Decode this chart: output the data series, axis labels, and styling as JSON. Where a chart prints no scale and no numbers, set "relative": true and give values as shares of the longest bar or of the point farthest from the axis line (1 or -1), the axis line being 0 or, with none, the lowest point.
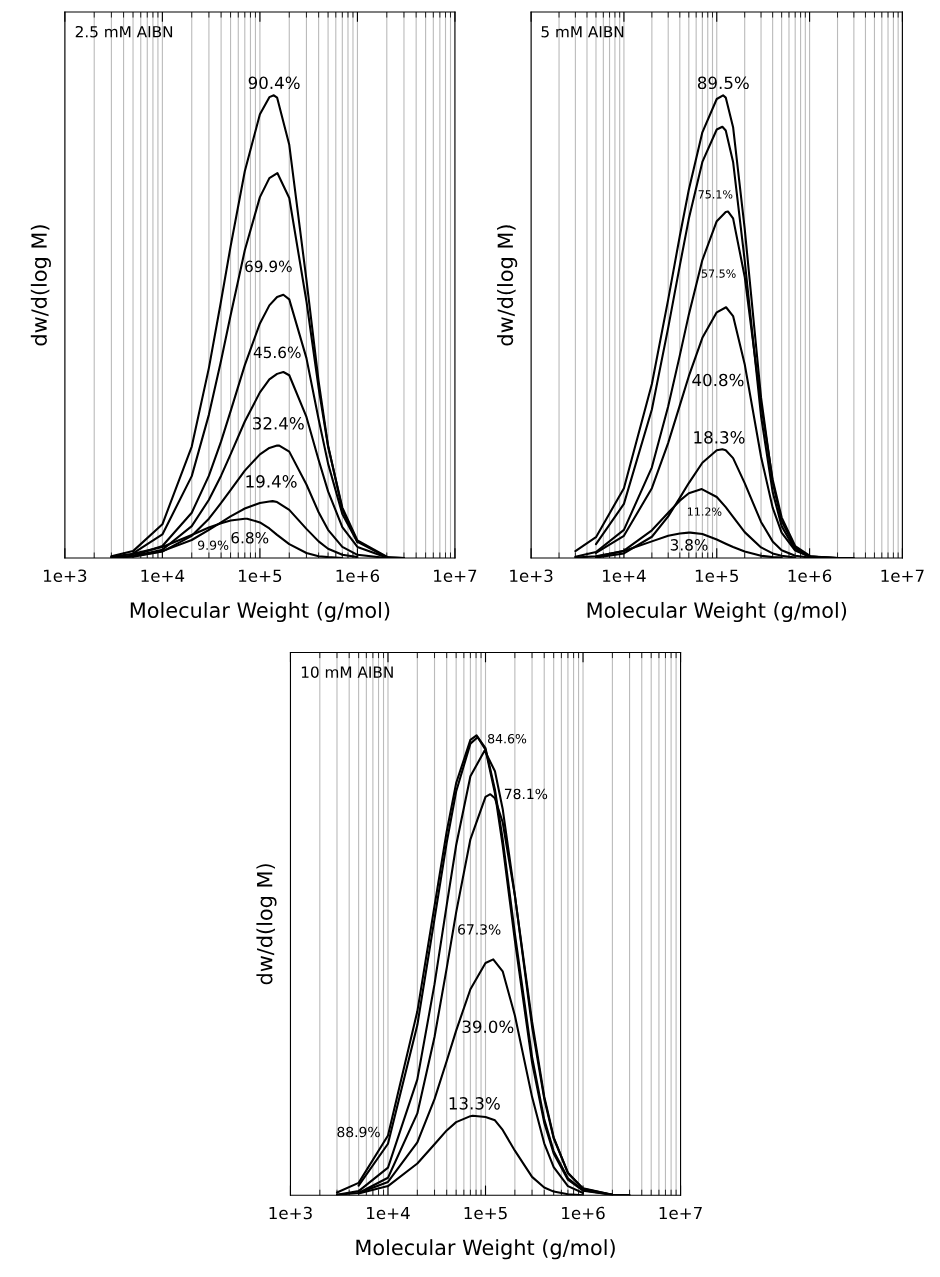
{
  "chart_data": [
    {
      "type": "line",
      "title": "2.5 mM AIBN",
      "xlabel": "Molecular Weight (g/mol)",
      "ylabel": "dw/d(log M)",
      "log": "x",
      "grid": "x",
      "relative": true,
      "line_style": "solid",
      "xlim": [
        1000,
        10000000
      ],
      "xticks": [
        {
          "value": 1000,
          "label": "1e+3"
        },
        {
          "value": 10000,
          "label": "1e+4"
        },
        {
          "value": 100000,
          "label": "1e+5"
        },
        {
          "value": 1000000,
          "label": "1e+6"
        },
        {
          "value": 10000000,
          "label": "1e+7"
        }
      ],
      "series": [
        {
          "name": "90.4%",
          "color": "#000000",
          "x": [
            3000,
            5000,
            10000,
            20000,
            30000,
            40000,
            50000,
            70000,
            100000,
            125000,
            139000,
            150000,
            200000,
            300000,
            400000,
            500000,
            700000,
            1000000,
            2000000,
            3000000
          ],
          "values": [
            0.004,
            0.015,
            0.073,
            0.241,
            0.411,
            0.556,
            0.673,
            0.836,
            0.959,
            0.996,
            1,
            0.995,
            0.893,
            0.601,
            0.382,
            0.243,
            0.105,
            0.035,
            0.002,
            0
          ]
        },
        {
          "name": "69.9%",
          "color": "#000000",
          "x": [
            5000,
            10000,
            20000,
            30000,
            40000,
            50000,
            70000,
            100000,
            125000,
            151000,
            200000,
            300000,
            400000,
            500000,
            700000,
            1000000,
            2000000
          ],
          "values": [
            0.01,
            0.051,
            0.177,
            0.31,
            0.427,
            0.524,
            0.665,
            0.78,
            0.821,
            0.832,
            0.778,
            0.555,
            0.367,
            0.241,
            0.109,
            0.038,
            0.003
          ]
        },
        {
          "name": "45.6%",
          "color": "#000000",
          "x": [
            3000,
            5000,
            10000,
            20000,
            30000,
            40000,
            50000,
            70000,
            100000,
            125000,
            150000,
            174000,
            200000,
            300000,
            400000,
            500000,
            700000,
            1000000
          ],
          "values": [
            0.001,
            0.005,
            0.026,
            0.098,
            0.178,
            0.252,
            0.317,
            0.417,
            0.507,
            0.546,
            0.564,
            0.569,
            0.559,
            0.432,
            0.3,
            0.204,
            0.095,
            0.034
          ]
        },
        {
          "name": "32.4%",
          "color": "#000000",
          "x": [
            5000,
            10000,
            20000,
            30000,
            40000,
            50000,
            70000,
            100000,
            125000,
            150000,
            174000,
            200000,
            300000,
            400000,
            500000,
            700000,
            1000000,
            2000000,
            3000000
          ],
          "values": [
            0.004,
            0.018,
            0.069,
            0.126,
            0.178,
            0.224,
            0.295,
            0.358,
            0.386,
            0.398,
            0.402,
            0.395,
            0.305,
            0.212,
            0.144,
            0.067,
            0.024,
            0.001,
            0
          ]
        },
        {
          "name": "19.4%",
          "color": "#000000",
          "x": [
            3000,
            5000,
            10000,
            20000,
            30000,
            40000,
            50000,
            70000,
            100000,
            125000,
            150000,
            158000,
            200000,
            300000,
            400000,
            500000,
            700000,
            1000000,
            2000000
          ],
          "values": [
            0.001,
            0.003,
            0.014,
            0.048,
            0.085,
            0.119,
            0.147,
            0.189,
            0.224,
            0.238,
            0.243,
            0.243,
            0.23,
            0.159,
            0.099,
            0.061,
            0.024,
            0.007,
            0
          ]
        },
        {
          "name": "9.9%",
          "color": "#000000",
          "x": [
            5000,
            10000,
            20000,
            30000,
            40000,
            50000,
            70000,
            100000,
            125000,
            135000,
            150000,
            200000,
            300000,
            400000,
            500000,
            700000,
            1000000
          ],
          "values": [
            0.004,
            0.015,
            0.039,
            0.061,
            0.077,
            0.09,
            0.107,
            0.119,
            0.122,
            0.123,
            0.121,
            0.104,
            0.063,
            0.036,
            0.02,
            0.007,
            0.002
          ]
        },
        {
          "name": "6.8%",
          "color": "#000000",
          "x": [
            3000,
            5000,
            10000,
            20000,
            30000,
            40000,
            50000,
            70000,
            74000,
            100000,
            125000,
            150000,
            200000,
            300000,
            400000,
            500000,
            700000
          ],
          "values": [
            0.003,
            0.009,
            0.024,
            0.05,
            0.066,
            0.075,
            0.081,
            0.085,
            0.085,
            0.077,
            0.064,
            0.05,
            0.03,
            0.011,
            0.004,
            0.002,
            0
          ]
        }
      ]
    },
    {
      "type": "line",
      "title": "5 mM AIBN",
      "xlabel": "Molecular Weight (g/mol)",
      "ylabel": "dw/d(log M)",
      "log": "x",
      "grid": "x",
      "relative": true,
      "line_style": "solid",
      "xlim": [
        1000,
        10000000
      ],
      "xticks": [
        {
          "value": 1000,
          "label": "1e+3"
        },
        {
          "value": 10000,
          "label": "1e+4"
        },
        {
          "value": 100000,
          "label": "1e+5"
        },
        {
          "value": 1000000,
          "label": "1e+6"
        },
        {
          "value": 10000000,
          "label": "1e+7"
        }
      ],
      "series": [
        {
          "name": "89.5%",
          "color": "#000000",
          "x": [
            3000,
            5000,
            10000,
            20000,
            30000,
            40000,
            50000,
            70000,
            100000,
            117000,
            125000,
            150000,
            200000,
            300000,
            400000,
            500000,
            700000,
            1000000,
            2000000
          ],
          "values": [
            0.015,
            0.045,
            0.151,
            0.376,
            0.559,
            0.696,
            0.796,
            0.92,
            0.992,
            1,
            0.995,
            0.931,
            0.712,
            0.347,
            0.164,
            0.08,
            0.022,
            0.004,
            0
          ]
        },
        {
          "name": "75.1%",
          "color": "#000000",
          "x": [
            5000,
            10000,
            20000,
            30000,
            40000,
            50000,
            70000,
            100000,
            115000,
            125000,
            150000,
            200000,
            300000,
            400000,
            500000,
            700000,
            1000000,
            2000000,
            3000000
          ],
          "values": [
            0.03,
            0.117,
            0.321,
            0.498,
            0.632,
            0.733,
            0.856,
            0.926,
            0.932,
            0.924,
            0.856,
            0.643,
            0.307,
            0.143,
            0.069,
            0.018,
            0.003,
            0,
            0
          ]
        },
        {
          "name": "57.5%",
          "color": "#000000",
          "x": [
            3000,
            5000,
            10000,
            20000,
            30000,
            40000,
            50000,
            70000,
            100000,
            125000,
            132000,
            150000,
            200000,
            300000,
            400000,
            500000,
            700000,
            1000000
          ],
          "values": [
            0.003,
            0.013,
            0.061,
            0.196,
            0.328,
            0.438,
            0.526,
            0.644,
            0.728,
            0.748,
            0.749,
            0.734,
            0.608,
            0.332,
            0.17,
            0.088,
            0.026,
            0.005
          ]
        },
        {
          "name": "40.8%",
          "color": "#000000",
          "x": [
            5000,
            10000,
            20000,
            30000,
            40000,
            50000,
            70000,
            100000,
            126000,
            150000,
            200000,
            300000,
            400000,
            500000,
            700000,
            1000000,
            2000000
          ],
          "values": [
            0.011,
            0.048,
            0.151,
            0.249,
            0.33,
            0.393,
            0.476,
            0.531,
            0.542,
            0.523,
            0.419,
            0.219,
            0.109,
            0.055,
            0.016,
            0.003,
            0
          ]
        },
        {
          "name": "18.3%",
          "color": "#000000",
          "x": [
            5000,
            10000,
            20000,
            30000,
            40000,
            50000,
            70000,
            100000,
            115000,
            125000,
            150000,
            200000,
            300000,
            400000,
            500000,
            700000,
            1000000
          ],
          "values": [
            0.001,
            0.01,
            0.046,
            0.09,
            0.13,
            0.162,
            0.206,
            0.233,
            0.235,
            0.233,
            0.216,
            0.162,
            0.078,
            0.036,
            0.017,
            0.005,
            0.001
          ]
        },
        {
          "name": "11.2%",
          "color": "#000000",
          "x": [
            5000,
            10000,
            20000,
            30000,
            40000,
            50000,
            69000,
            100000,
            125000,
            150000,
            200000,
            300000,
            400000,
            500000,
            700000
          ],
          "values": [
            0.003,
            0.016,
            0.06,
            0.098,
            0.124,
            0.14,
            0.149,
            0.132,
            0.11,
            0.089,
            0.056,
            0.023,
            0.01,
            0.005,
            0.001
          ]
        },
        {
          "name": "3.8%",
          "color": "#000000",
          "x": [
            3000,
            5000,
            10000,
            20000,
            30000,
            40000,
            50000,
            52000,
            70000,
            100000,
            125000,
            150000,
            200000,
            300000,
            400000,
            500000
          ],
          "values": [
            0.001,
            0.004,
            0.015,
            0.036,
            0.048,
            0.053,
            0.055,
            0.055,
            0.052,
            0.04,
            0.031,
            0.024,
            0.014,
            0.005,
            0.002,
            0.001
          ]
        }
      ]
    },
    {
      "type": "line",
      "title": "10 mM AIBN",
      "xlabel": "Molecular Weight (g/mol)",
      "ylabel": "dw/d(log M)",
      "log": "x",
      "grid": "x",
      "relative": true,
      "line_style": "solid",
      "xlim": [
        1000,
        10000000
      ],
      "xticks": [
        {
          "value": 1000,
          "label": "1e+3"
        },
        {
          "value": 10000,
          "label": "1e+4"
        },
        {
          "value": 100000,
          "label": "1e+5"
        },
        {
          "value": 1000000,
          "label": "1e+6"
        },
        {
          "value": 10000000,
          "label": "1e+7"
        }
      ],
      "series": [
        {
          "name": "88.9%",
          "color": "#000000",
          "x": [
            3000,
            5000,
            10000,
            20000,
            30000,
            40000,
            50000,
            70000,
            81000,
            100000,
            125000,
            150000,
            200000,
            300000,
            400000,
            500000,
            700000,
            1000000,
            2000000,
            3000000
          ],
          "values": [
            0.006,
            0.027,
            0.13,
            0.4,
            0.629,
            0.791,
            0.896,
            0.99,
            1,
            0.969,
            0.874,
            0.761,
            0.554,
            0.289,
            0.158,
            0.091,
            0.034,
            0.01,
            0.001,
            0
          ]
        },
        {
          "name": "84.6%",
          "color": "#000000",
          "x": [
            5000,
            10000,
            20000,
            30000,
            40000,
            50000,
            70000,
            83000,
            100000,
            125000,
            150000,
            200000,
            300000,
            400000,
            500000,
            700000,
            1000000,
            2000000
          ],
          "values": [
            0.021,
            0.112,
            0.37,
            0.601,
            0.767,
            0.878,
            0.982,
            0.996,
            0.972,
            0.882,
            0.774,
            0.569,
            0.301,
            0.165,
            0.096,
            0.037,
            0.011,
            0.001
          ]
        },
        {
          "name": "78.1%",
          "color": "#000000",
          "x": [
            3000,
            5000,
            10000,
            20000,
            30000,
            40000,
            50000,
            70000,
            98000,
            125000,
            150000,
            200000,
            300000,
            400000,
            500000,
            700000,
            1000000,
            2000000
          ],
          "values": [
            0.001,
            0.009,
            0.06,
            0.252,
            0.459,
            0.631,
            0.761,
            0.911,
            0.967,
            0.922,
            0.84,
            0.652,
            0.367,
            0.21,
            0.124,
            0.049,
            0.015,
            0.001
          ]
        },
        {
          "name": "67.3%",
          "color": "#000000",
          "x": [
            5000,
            10000,
            20000,
            30000,
            40000,
            50000,
            70000,
            100000,
            112000,
            125000,
            150000,
            200000,
            300000,
            400000,
            500000,
            700000,
            1000000,
            2000000,
            3000000
          ],
          "values": [
            0.005,
            0.038,
            0.178,
            0.344,
            0.494,
            0.615,
            0.774,
            0.866,
            0.872,
            0.863,
            0.811,
            0.652,
            0.378,
            0.215,
            0.126,
            0.048,
            0.014,
            0.001,
            0
          ]
        },
        {
          "name": "39.0%",
          "color": "#000000",
          "x": [
            3000,
            5000,
            10000,
            20000,
            30000,
            40000,
            50000,
            70000,
            100000,
            120000,
            150000,
            200000,
            300000,
            400000,
            500000,
            700000,
            1000000
          ],
          "values": [
            0.001,
            0.005,
            0.029,
            0.115,
            0.209,
            0.292,
            0.358,
            0.448,
            0.505,
            0.513,
            0.487,
            0.391,
            0.214,
            0.113,
            0.061,
            0.02,
            0.005
          ]
        },
        {
          "name": "13.3%",
          "color": "#000000",
          "x": [
            5000,
            10000,
            20000,
            30000,
            40000,
            50000,
            70000,
            74000,
            100000,
            125000,
            150000,
            200000,
            300000,
            400000,
            500000,
            700000,
            1000000
          ],
          "values": [
            0.004,
            0.02,
            0.069,
            0.111,
            0.141,
            0.159,
            0.172,
            0.173,
            0.17,
            0.163,
            0.142,
            0.097,
            0.04,
            0.017,
            0.008,
            0.002,
            0
          ]
        }
      ]
    }
  ]
}
